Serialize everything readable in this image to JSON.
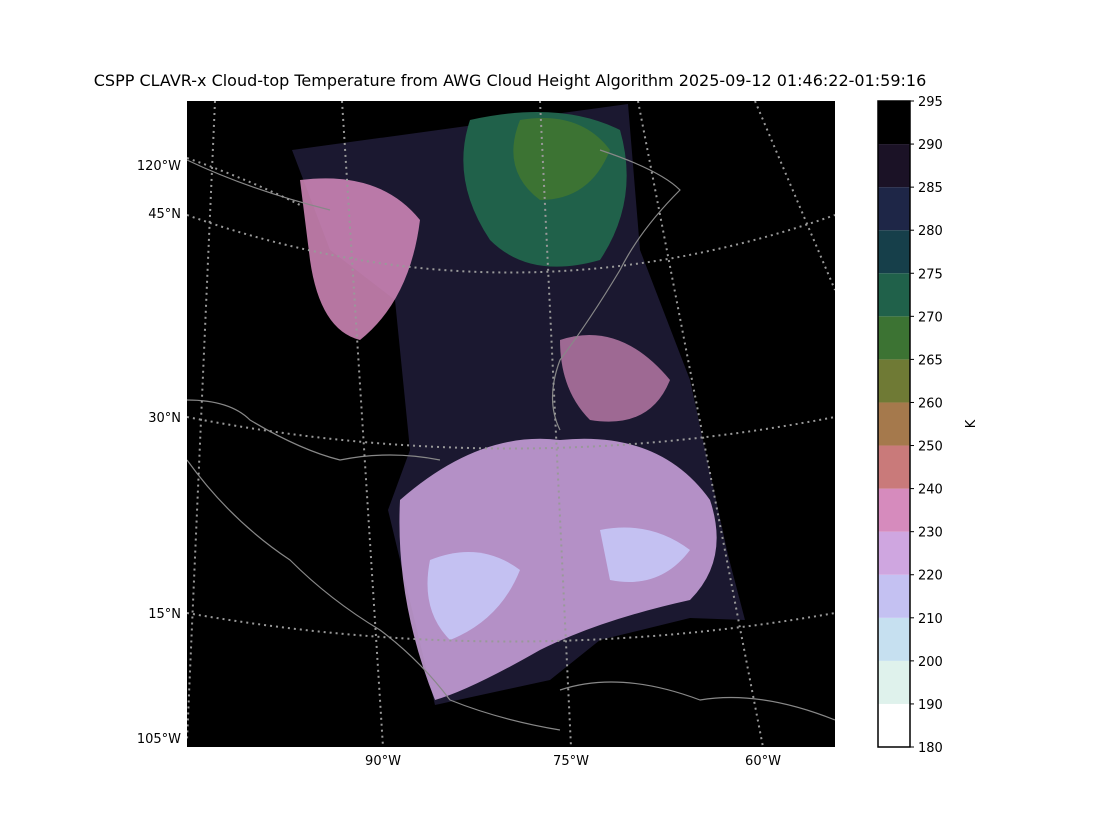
{
  "title": "CSPP CLAVR-x Cloud-top Temperature from AWG Cloud Height Algorithm 2025-09-12 01:46:22-01:59:16",
  "map": {
    "left_labels": [
      "120°W",
      "45°N",
      "30°N",
      "15°N",
      "105°W"
    ],
    "bottom_labels": [
      "90°W",
      "75°W",
      "60°W"
    ]
  },
  "colorbar": {
    "label": "K",
    "ticks": [
      180,
      190,
      200,
      210,
      220,
      230,
      240,
      250,
      260,
      265,
      270,
      275,
      280,
      285,
      290,
      295
    ],
    "colors": [
      "#ffffff",
      "#dff2ec",
      "#c6e0f0",
      "#c4c1f2",
      "#cfa6e0",
      "#d68bbd",
      "#c97a7a",
      "#a5794c",
      "#6f7a35",
      "#3c7333",
      "#20614a",
      "#163f4a",
      "#1e2647",
      "#1b1226",
      "#000000"
    ]
  }
}
